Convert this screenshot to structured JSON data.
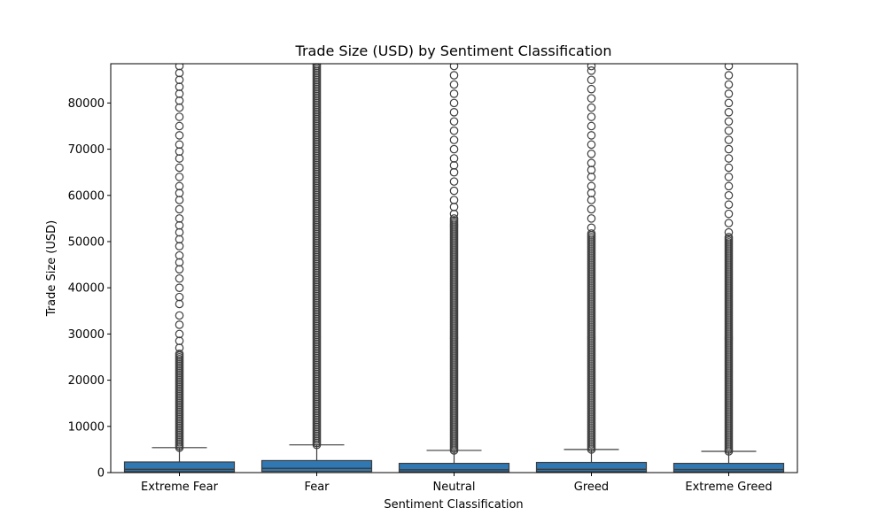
{
  "chart_data": {
    "type": "box",
    "title": "Trade Size (USD) by Sentiment Classification",
    "xlabel": "Sentiment Classification",
    "ylabel": "Trade Size (USD)",
    "ylim": [
      0,
      88500
    ],
    "yticks": [
      0,
      10000,
      20000,
      30000,
      40000,
      50000,
      60000,
      70000,
      80000
    ],
    "grid": false,
    "colors": {
      "box_fill": "#2f78b3",
      "line": "#3d3d3d",
      "outlier": "#3d3d3d"
    },
    "categories": [
      "Extreme Fear",
      "Fear",
      "Neutral",
      "Greed",
      "Extreme Greed"
    ],
    "boxes": [
      {
        "category": "Extreme Fear",
        "q1": 200,
        "median": 700,
        "q3": 2300,
        "whisker_low": 0,
        "whisker_high": 5400,
        "outliers_dense_from": 5400,
        "outliers_dense_to": 26000,
        "outliers": [
          27000,
          28500,
          30000,
          32000,
          34000,
          36500,
          38000,
          40000,
          42000,
          44000,
          45500,
          47000,
          49000,
          50500,
          52000,
          53500,
          55000,
          57000,
          59000,
          60500,
          62000,
          64000,
          66000,
          68000,
          69500,
          71000,
          73000,
          75000,
          77000,
          79000,
          80500,
          82000,
          83500,
          85000,
          86500,
          88000
        ]
      },
      {
        "category": "Fear",
        "q1": 250,
        "median": 900,
        "q3": 2600,
        "whisker_low": 0,
        "whisker_high": 6000,
        "outliers_dense_from": 6000,
        "outliers_dense_to": 88500,
        "outliers": []
      },
      {
        "category": "Neutral",
        "q1": 150,
        "median": 600,
        "q3": 2000,
        "whisker_low": 0,
        "whisker_high": 4800,
        "outliers_dense_from": 4800,
        "outliers_dense_to": 55000,
        "outliers": [
          56000,
          57500,
          59000,
          61000,
          63000,
          65000,
          66500,
          68000,
          70000,
          72000,
          74000,
          76000,
          78000,
          80000,
          82000,
          84000,
          86000,
          88000
        ]
      },
      {
        "category": "Greed",
        "q1": 200,
        "median": 700,
        "q3": 2200,
        "whisker_low": 0,
        "whisker_high": 5000,
        "outliers_dense_from": 5000,
        "outliers_dense_to": 52000,
        "outliers": [
          53000,
          55000,
          57000,
          59000,
          60500,
          62000,
          64000,
          65500,
          67000,
          69000,
          71000,
          73000,
          75000,
          77000,
          79000,
          81000,
          83000,
          85000,
          87000,
          88000
        ]
      },
      {
        "category": "Extreme Greed",
        "q1": 150,
        "median": 650,
        "q3": 2000,
        "whisker_low": 0,
        "whisker_high": 4600,
        "outliers_dense_from": 4600,
        "outliers_dense_to": 51000,
        "outliers": [
          52000,
          54000,
          56000,
          58000,
          60000,
          62000,
          64000,
          66000,
          68000,
          70000,
          72000,
          74000,
          76000,
          78000,
          80000,
          82000,
          84000,
          86000,
          88000
        ]
      }
    ]
  }
}
